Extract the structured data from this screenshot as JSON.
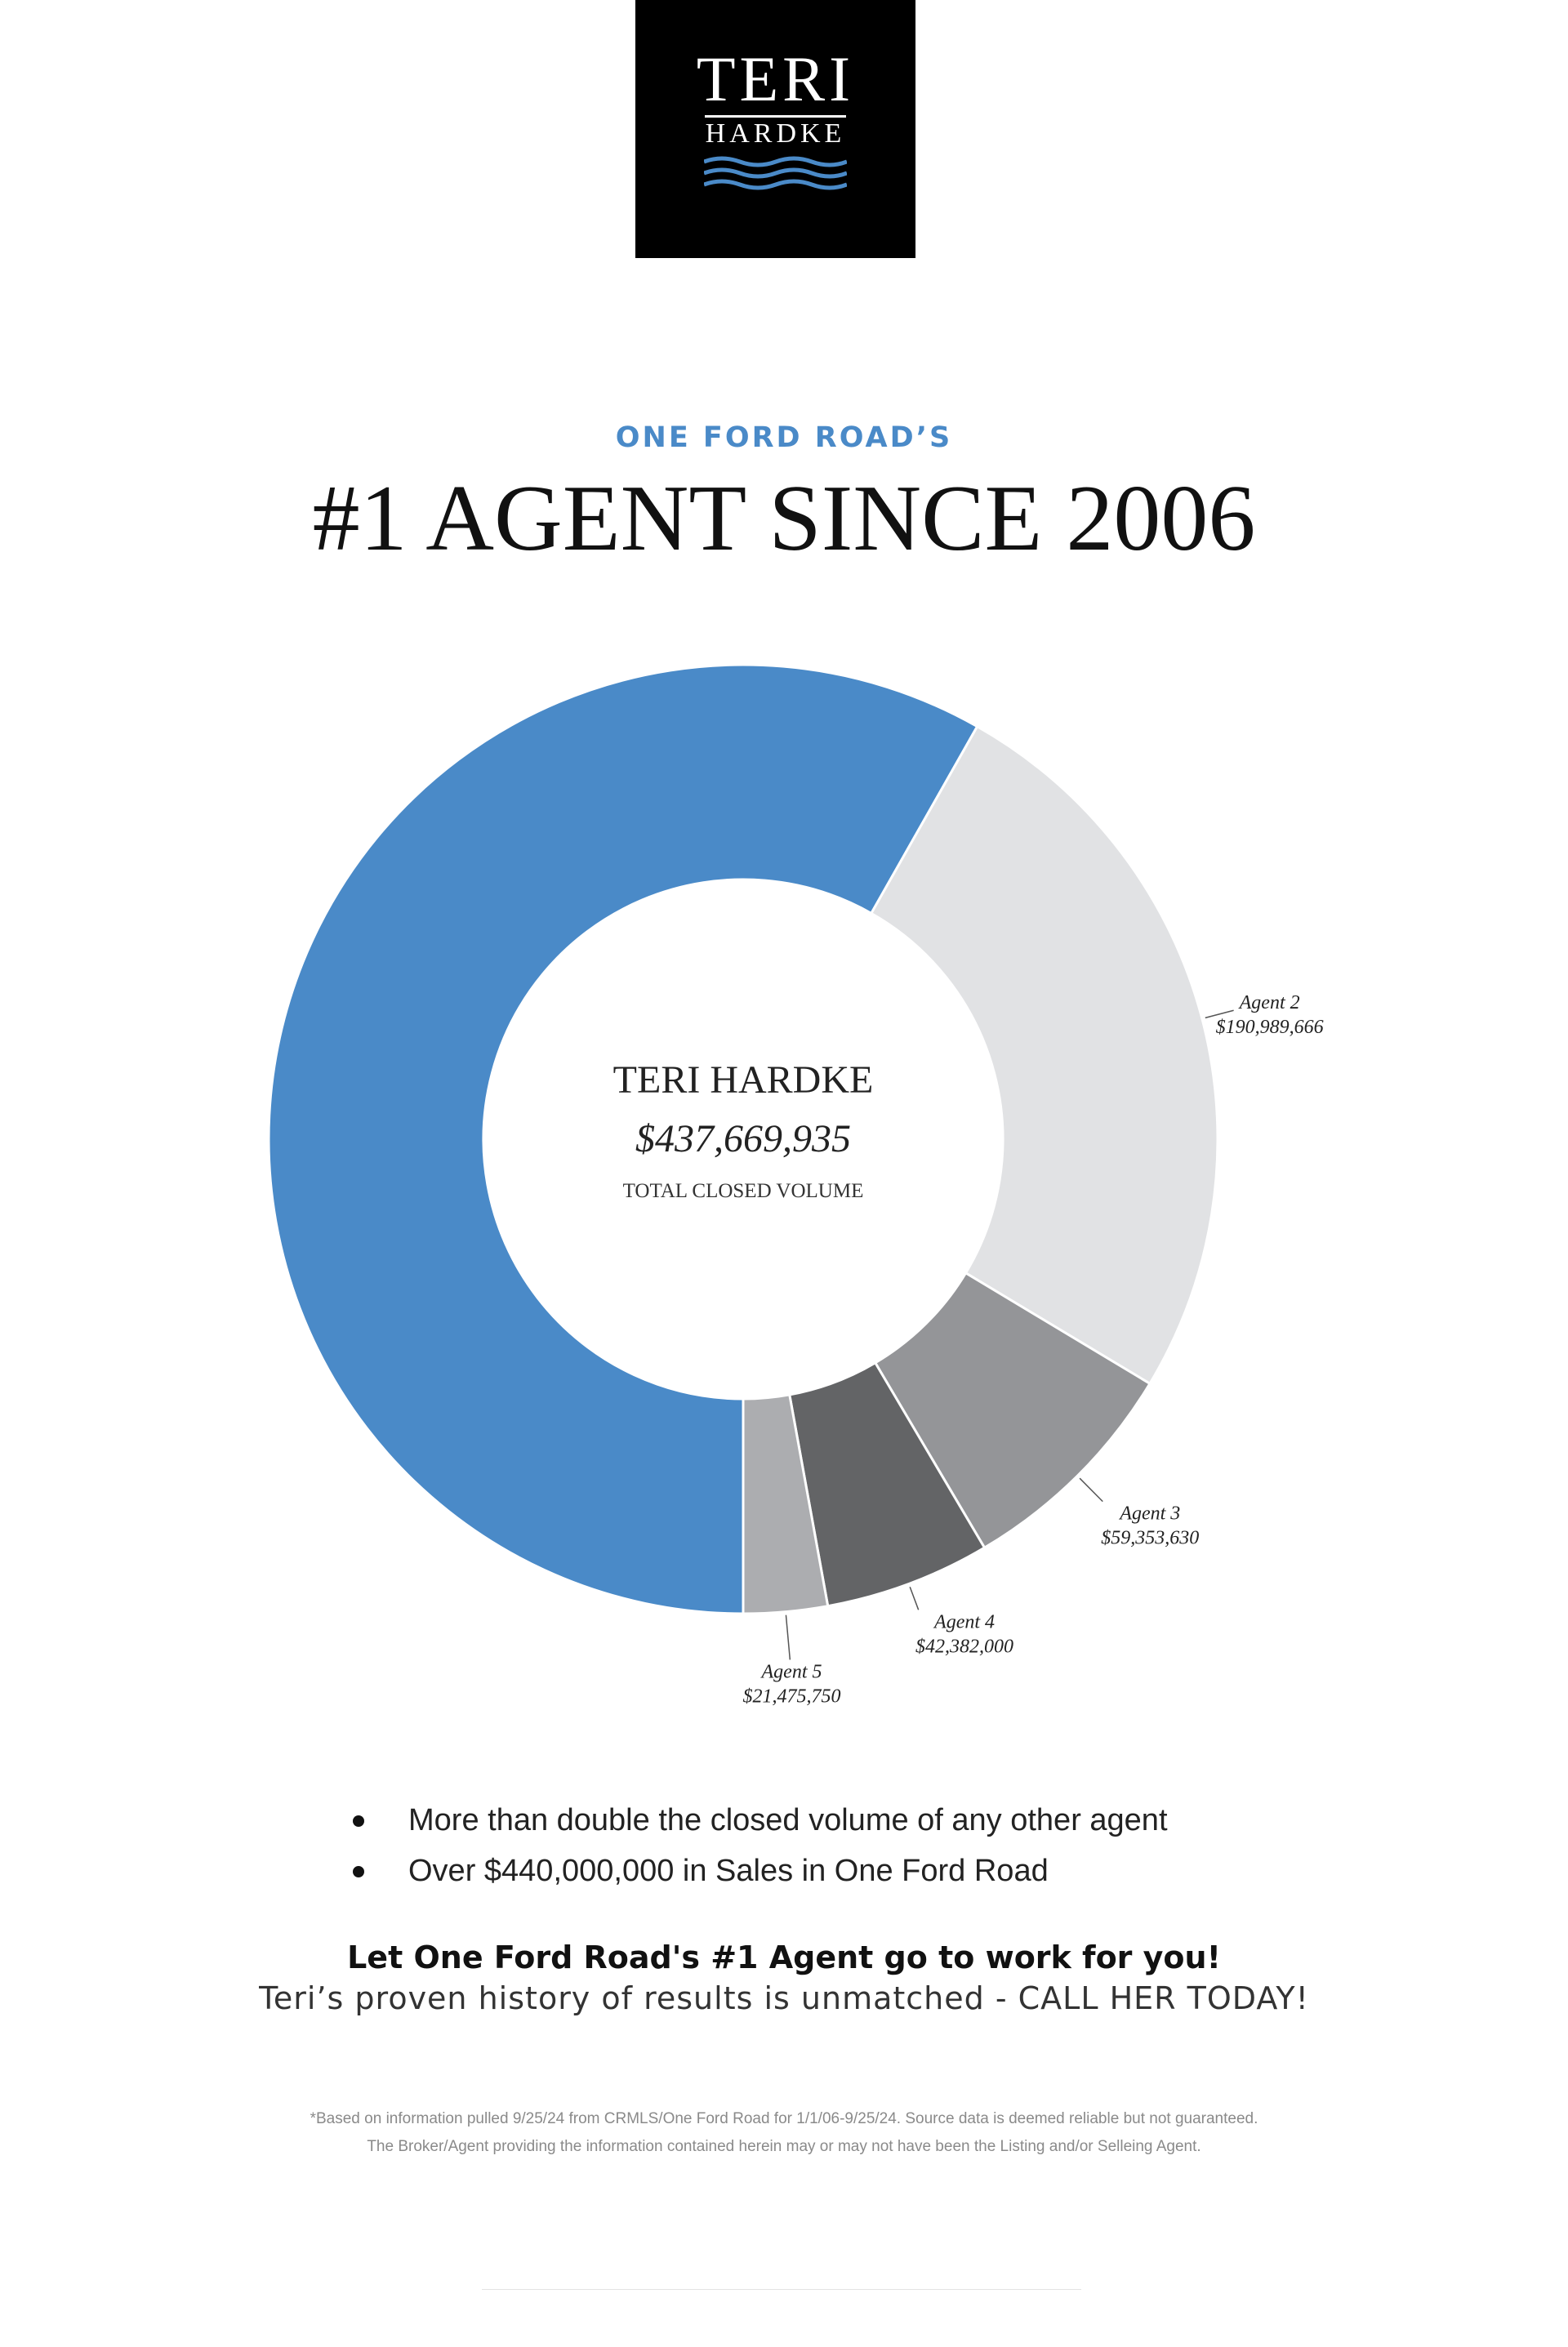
{
  "brand": {
    "logo_top": "TERI",
    "logo_bottom": "HARDKE",
    "wave_color": "#4a8ac8"
  },
  "header": {
    "subtitle": "ONE FORD ROAD’S",
    "title": "#1 AGENT SINCE 2006"
  },
  "chart_data": {
    "type": "pie",
    "variant": "donut",
    "center": {
      "name": "TERI HARDKE",
      "value_label": "$437,669,935",
      "caption": "TOTAL CLOSED VOLUME"
    },
    "slices": [
      {
        "name": "Teri Hardke",
        "value": 437669935,
        "label": "",
        "color": "#4a8ac8"
      },
      {
        "name": "Agent 2",
        "value": 190989666,
        "label": "$190,989,666",
        "color": "#e1e2e4"
      },
      {
        "name": "Agent 3",
        "value": 59353630,
        "label": "$59,353,630",
        "color": "#949598"
      },
      {
        "name": "Agent 4",
        "value": 42382000,
        "label": "$42,382,000",
        "color": "#636466"
      },
      {
        "name": "Agent 5",
        "value": 21475750,
        "label": "$21,475,750",
        "color": "#acadb0"
      }
    ]
  },
  "bullets": [
    "More than double the closed volume of any other agent",
    "Over $440,000,000 in Sales in One Ford Road"
  ],
  "cta": {
    "headline": "Let One Ford Road's #1 Agent go to work for you!",
    "subline": "Teri’s proven history of results is unmatched - CALL HER TODAY!"
  },
  "disclaimer": {
    "line1": "*Based on information pulled 9/25/24 from CRMLS/One Ford Road for 1/1/06-9/25/24. Source data is deemed reliable but not guaranteed.",
    "line2": "The Broker/Agent providing the information contained herein may or may not have been the Listing and/or Selleing Agent."
  }
}
